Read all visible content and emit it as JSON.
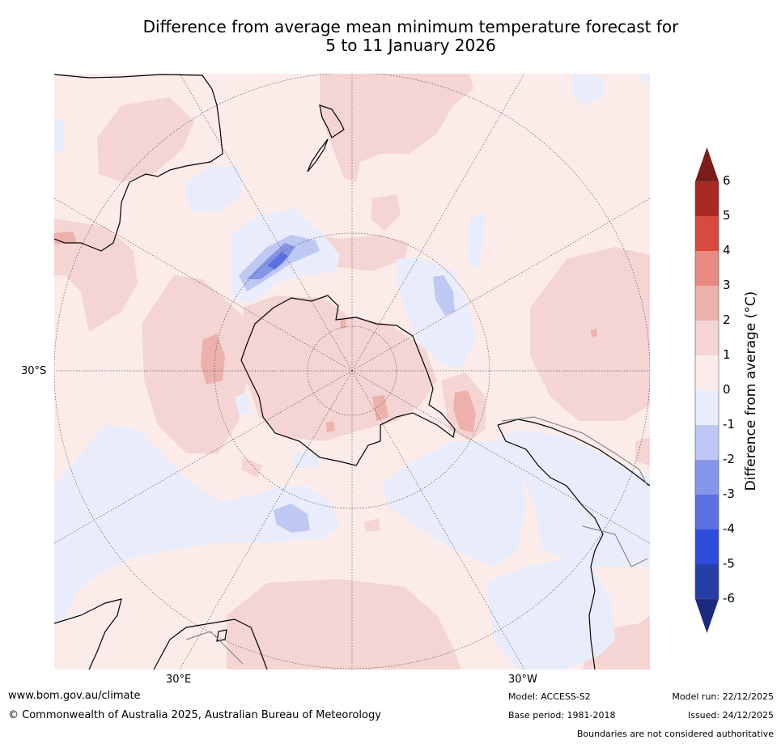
{
  "title": {
    "line1": "Difference from average mean minimum temperature forecast for",
    "line2": "5 to 11 January 2026"
  },
  "map": {
    "lat_labels": [
      "30°S"
    ],
    "lon_labels": [
      "30°E",
      "30°W"
    ]
  },
  "colorbar": {
    "label": "Difference from average (°C)",
    "ticks": [
      "6",
      "5",
      "4",
      "3",
      "2",
      "1",
      "0",
      "-1",
      "-2",
      "-3",
      "-4",
      "-5",
      "-6"
    ],
    "colors": {
      "extend_top": "#7b1d18",
      "c5_6": "#a82a22",
      "c4_5": "#d84a3e",
      "c3_4": "#e98a82",
      "c2_3": "#edb1ab",
      "c1_2": "#f4d5d3",
      "c0_1": "#fbecea",
      "cm1_0": "#e9edfb",
      "cm2_m1": "#bec8f2",
      "cm3_m2": "#8596e8",
      "cm4_m3": "#5a70e0",
      "cm5_m4": "#2e4cdc",
      "cm6_m5": "#253ea8",
      "extend_bottom": "#1c2a80"
    }
  },
  "footer": {
    "website": "www.bom.gov.au/climate",
    "copyright": "© Commonwealth of Australia 2025, Australian Bureau of Meteorology",
    "model": "Model: ACCESS-S2",
    "base_period": "Base period: 1981-2018",
    "model_run": "Model run: 22/12/2025",
    "issued": "Issued: 24/12/2025",
    "disclaimer": "Boundaries are not considered authoritative"
  }
}
